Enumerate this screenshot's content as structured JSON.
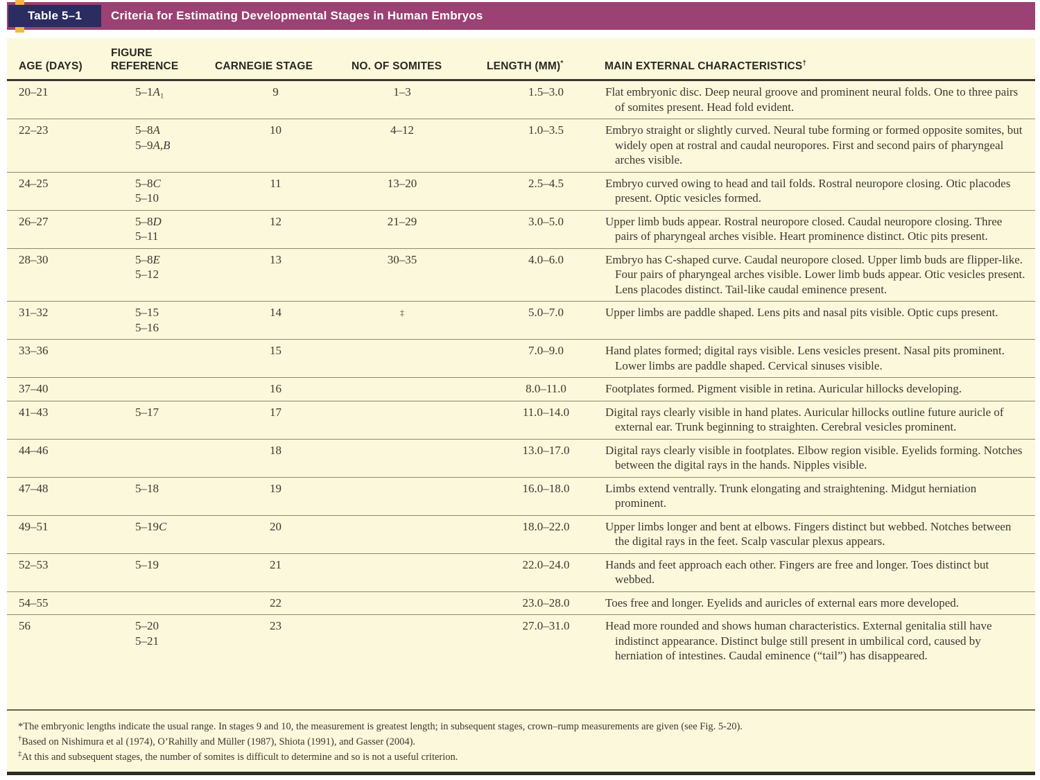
{
  "title_bar": {
    "label": "Table 5–1",
    "title": "Criteria for Estimating Developmental Stages in Human Embryos"
  },
  "columns": [
    {
      "label": "AGE (DAYS)",
      "sup": ""
    },
    {
      "label": "FIGURE REFERENCE",
      "sup": ""
    },
    {
      "label": "CARNEGIE STAGE",
      "sup": ""
    },
    {
      "label": "NO. OF SOMITES",
      "sup": ""
    },
    {
      "label": "LENGTH (MM)",
      "sup": "*"
    },
    {
      "label": "MAIN EXTERNAL CHARACTERISTICS",
      "sup": "†"
    }
  ],
  "rows": [
    {
      "age": "20–21",
      "figure": [
        "5–1A₁"
      ],
      "stage": "9",
      "somites": "1–3",
      "length": "1.5–3.0",
      "characteristics": "Flat embryonic disc. Deep neural groove and prominent neural folds. One to three pairs of somites present. Head fold evident."
    },
    {
      "age": "22–23",
      "figure": [
        "5–8A",
        "5–9A,B"
      ],
      "stage": "10",
      "somites": "4–12",
      "length": "1.0–3.5",
      "characteristics": "Embryo straight or slightly curved. Neural tube forming or formed opposite somites, but widely open at rostral and caudal neuropores. First and second pairs of pharyngeal arches visible."
    },
    {
      "age": "24–25",
      "figure": [
        "5–8C",
        "5–10"
      ],
      "stage": "11",
      "somites": "13–20",
      "length": "2.5–4.5",
      "characteristics": "Embryo curved owing to head and tail folds. Rostral neuropore closing. Otic placodes present. Optic vesicles formed."
    },
    {
      "age": "26–27",
      "figure": [
        "5–8D",
        "5–11"
      ],
      "stage": "12",
      "somites": "21–29",
      "length": "3.0–5.0",
      "characteristics": "Upper limb buds appear. Rostral neuropore closed. Caudal neuropore closing. Three pairs of pharyngeal arches visible. Heart prominence distinct. Otic pits present."
    },
    {
      "age": "28–30",
      "figure": [
        "5–8E",
        "5–12"
      ],
      "stage": "13",
      "somites": "30–35",
      "length": "4.0–6.0",
      "characteristics": "Embryo has C-shaped curve. Caudal neuropore closed. Upper limb buds are flipper-like. Four pairs of pharyngeal arches visible. Lower limb buds appear. Otic vesicles present. Lens placodes distinct. Tail-like caudal eminence present."
    },
    {
      "age": "31–32",
      "figure": [
        "5–15",
        "5–16"
      ],
      "stage": "14",
      "somites": "‡",
      "length": "5.0–7.0",
      "characteristics": "Upper limbs are paddle shaped. Lens pits and nasal pits visible. Optic cups present."
    },
    {
      "age": "33–36",
      "figure": [],
      "stage": "15",
      "somites": "",
      "length": "7.0–9.0",
      "characteristics": "Hand plates formed; digital rays visible. Lens vesicles present. Nasal pits prominent. Lower limbs are paddle shaped. Cervical sinuses visible."
    },
    {
      "age": "37–40",
      "figure": [],
      "stage": "16",
      "somites": "",
      "length": "8.0–11.0",
      "characteristics": "Footplates formed. Pigment visible in retina. Auricular hillocks developing."
    },
    {
      "age": "41–43",
      "figure": [
        "5–17"
      ],
      "stage": "17",
      "somites": "",
      "length": "11.0–14.0",
      "characteristics": "Digital rays clearly visible in hand plates. Auricular hillocks outline future auricle of external ear. Trunk beginning to straighten. Cerebral vesicles prominent."
    },
    {
      "age": "44–46",
      "figure": [],
      "stage": "18",
      "somites": "",
      "length": "13.0–17.0",
      "characteristics": "Digital rays clearly visible in footplates. Elbow region visible. Eyelids forming. Notches between the digital rays in the hands. Nipples visible."
    },
    {
      "age": "47–48",
      "figure": [
        "5–18"
      ],
      "stage": "19",
      "somites": "",
      "length": "16.0–18.0",
      "characteristics": "Limbs extend ventrally. Trunk elongating and straightening. Midgut herniation prominent."
    },
    {
      "age": "49–51",
      "figure": [
        "5–19C"
      ],
      "stage": "20",
      "somites": "",
      "length": "18.0–22.0",
      "characteristics": "Upper limbs longer and bent at elbows. Fingers distinct but webbed. Notches between the digital rays in the feet. Scalp vascular plexus appears."
    },
    {
      "age": "52–53",
      "figure": [
        "5–19"
      ],
      "stage": "21",
      "somites": "",
      "length": "22.0–24.0",
      "characteristics": "Hands and feet approach each other. Fingers are free and longer. Toes distinct but webbed."
    },
    {
      "age": "54–55",
      "figure": [],
      "stage": "22",
      "somites": "",
      "length": "23.0–28.0",
      "characteristics": "Toes free and longer. Eyelids and auricles of external ears more developed."
    },
    {
      "age": "56",
      "figure": [
        "5–20",
        "5–21"
      ],
      "stage": "23",
      "somites": "",
      "length": "27.0–31.0",
      "characteristics": "Head more rounded and shows human characteristics. External genitalia still have indistinct appearance. Distinct bulge still present in umbilical cord, caused by herniation of intestines. Caudal eminence (“tail”) has disappeared."
    }
  ],
  "footnotes": [
    {
      "sym": "*",
      "text": "The embryonic lengths indicate the usual range. In stages 9 and 10, the measurement is greatest length; in subsequent stages, crown–rump measurements are given (see Fig. 5-20)."
    },
    {
      "sym": "†",
      "text": "Based on Nishimura et al (1974), O’Rahilly and Müller (1987), Shiota (1991), and Gasser (2004)."
    },
    {
      "sym": "‡",
      "text": "At this and subsequent stages, the number of somites is difficult to determine and so is not a useful criterion."
    }
  ],
  "colors": {
    "title_bar_bg": "#9b4173",
    "label_box_bg": "#2b2c5f",
    "accent_tab": "#f2b843",
    "sheet_bg": "#fbf8dc",
    "rule_dark": "#39362c",
    "rule_light": "#8a8870"
  }
}
